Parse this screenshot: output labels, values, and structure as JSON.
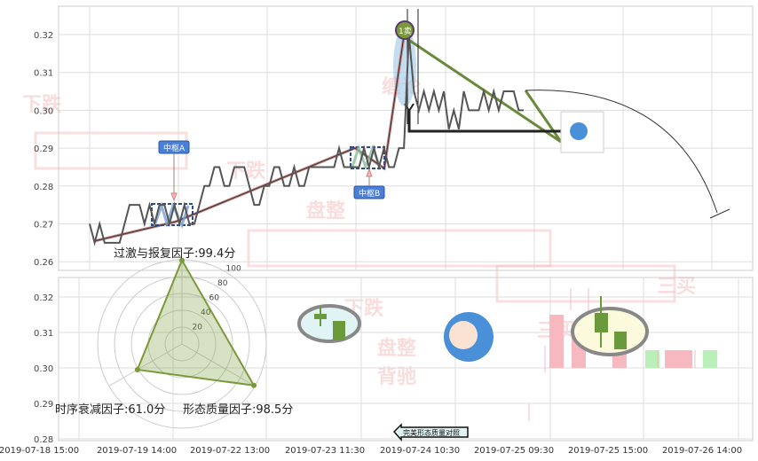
{
  "chart_data": [
    {
      "type": "line",
      "panel": "top",
      "ylim": [
        0.255,
        0.327
      ],
      "yticks": [
        "0.32",
        "0.31",
        "0.30",
        "0.29",
        "0.28",
        "0.27",
        "0.26"
      ],
      "grid": true,
      "series": [
        {
          "values": [
            0.27,
            0.265,
            0.27,
            0.265,
            0.265,
            0.265,
            0.265,
            0.27,
            0.275,
            0.275,
            0.275,
            0.27,
            0.275,
            0.27,
            0.275,
            0.275,
            0.27,
            0.275,
            0.27,
            0.275,
            0.27,
            0.27,
            0.275,
            0.28,
            0.28,
            0.285,
            0.285,
            0.28,
            0.28,
            0.285,
            0.285,
            0.285,
            0.28,
            0.275,
            0.275,
            0.28,
            0.28,
            0.285,
            0.285,
            0.28,
            0.28,
            0.285,
            0.28,
            0.28,
            0.285,
            0.285,
            0.285,
            0.285,
            0.285,
            0.285,
            0.29,
            0.285,
            0.285,
            0.285,
            0.285,
            0.29,
            0.285,
            0.29,
            0.285,
            0.29,
            0.285,
            0.285,
            0.29,
            0.29,
            0.32,
            0.305,
            0.3,
            0.305,
            0.3,
            0.305,
            0.3,
            0.305,
            0.295,
            0.3,
            0.295,
            0.305,
            0.3,
            0.3,
            0.3,
            0.305,
            0.3,
            0.305,
            0.3,
            0.305,
            0.305,
            0.305,
            0.3,
            0.3
          ],
          "color": "#555555"
        }
      ],
      "annotations": {
        "pivot_a": "中枢A",
        "pivot_b": "中枢B",
        "sell_point": "1卖"
      }
    },
    {
      "type": "bar",
      "panel": "bottom",
      "ylim": [
        0.28,
        0.325
      ],
      "yticks": [
        "0.32",
        "0.31",
        "0.30",
        "0.29",
        "0.28"
      ],
      "xticks": [
        "2019-07-18 15:00",
        "2019-07-19 14:00",
        "2019-07-22 13:00",
        "2019-07-23 11:30",
        "2019-07-24 10:30",
        "2019-07-25 09:30",
        "2019-07-25 15:00",
        "2019-07-26 14:00"
      ],
      "grid": true
    },
    {
      "type": "radar",
      "rings": [
        "20",
        "40",
        "60",
        "80",
        "100"
      ],
      "axes": [
        {
          "label": "过激与报复因子:99.4分",
          "value": 99.4
        },
        {
          "label": "形态质量因子:98.5分",
          "value": 98.5
        },
        {
          "label": "时序衰减因子:61.0分",
          "value": 61.0
        }
      ],
      "color": "#7a9a3a"
    }
  ],
  "compare_button": "完美形态质量对照",
  "watermarks": [
    "下跌",
    "盘整",
    "下跌",
    "盘整",
    "下跌",
    "背驰",
    "三买",
    "三买",
    "缠论"
  ],
  "colors": {
    "up": "#f7b8c0",
    "down": "#b8f0b8",
    "accent": "#7a9a3a",
    "tag": "#4a7fd8"
  }
}
